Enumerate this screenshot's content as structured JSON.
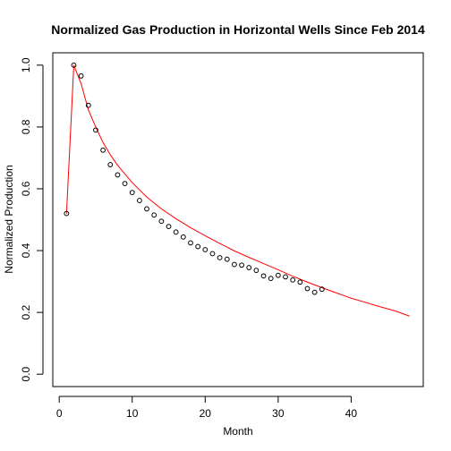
{
  "chart_data": {
    "type": "scatter",
    "title": "Normalized Gas Production in Horizontal Wells Since Feb 2014",
    "xlabel": "Month",
    "ylabel": "Normalized Production",
    "xlim": [
      -0.88,
      49.88
    ],
    "ylim": [
      -0.04,
      1.04
    ],
    "x_ticks": [
      0,
      10,
      20,
      30,
      40
    ],
    "y_ticks": [
      0.0,
      0.2,
      0.4,
      0.6,
      0.8,
      1.0
    ],
    "x_tick_labels": [
      "0",
      "10",
      "20",
      "30",
      "40"
    ],
    "y_tick_labels": [
      "0.0",
      "0.2",
      "0.4",
      "0.6",
      "0.8",
      "1.0"
    ],
    "grid": false,
    "series": [
      {
        "kind": "points",
        "marker": "open-circle",
        "color": "#000000",
        "x": [
          1,
          2,
          3,
          4,
          5,
          6,
          7,
          8,
          9,
          10,
          11,
          12,
          13,
          14,
          15,
          16,
          17,
          18,
          19,
          20,
          21,
          22,
          23,
          24,
          25,
          26,
          27,
          28,
          29,
          30,
          31,
          32,
          33,
          34,
          35,
          36
        ],
        "y": [
          0.52,
          1.0,
          0.965,
          0.87,
          0.79,
          0.725,
          0.678,
          0.645,
          0.617,
          0.588,
          0.562,
          0.535,
          0.515,
          0.495,
          0.478,
          0.46,
          0.444,
          0.425,
          0.413,
          0.403,
          0.39,
          0.377,
          0.372,
          0.355,
          0.353,
          0.345,
          0.336,
          0.318,
          0.31,
          0.32,
          0.315,
          0.305,
          0.298,
          0.277,
          0.265,
          0.275
        ]
      },
      {
        "kind": "line",
        "color": "#ff0000",
        "x": [
          1,
          2,
          3,
          4,
          5,
          6,
          7,
          8,
          10,
          12,
          14,
          16,
          18,
          20,
          22,
          24,
          26,
          28,
          30,
          32,
          34,
          36,
          38,
          40,
          42,
          44,
          46,
          48
        ],
        "y": [
          0.52,
          1.0,
          0.94,
          0.855,
          0.8,
          0.75,
          0.71,
          0.676,
          0.62,
          0.573,
          0.535,
          0.503,
          0.474,
          0.448,
          0.423,
          0.399,
          0.378,
          0.358,
          0.338,
          0.317,
          0.298,
          0.28,
          0.263,
          0.246,
          0.232,
          0.218,
          0.205,
          0.188
        ]
      }
    ]
  }
}
